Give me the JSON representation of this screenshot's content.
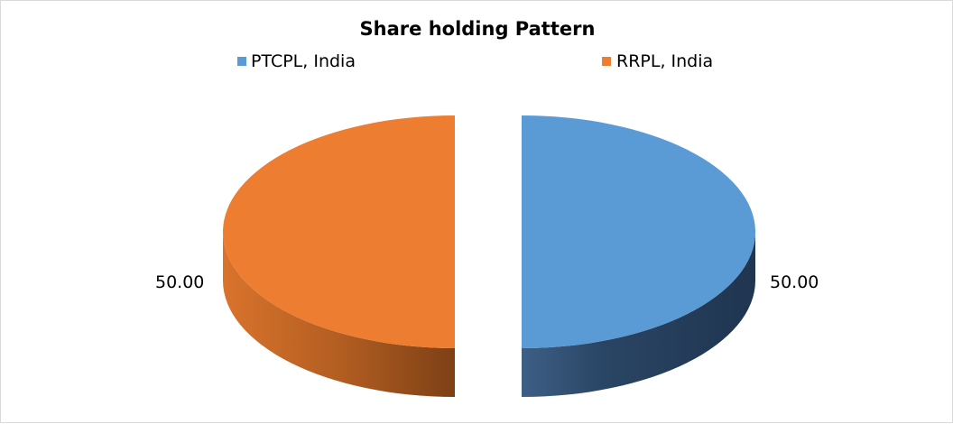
{
  "chart_data": {
    "type": "pie",
    "title": "Share holding  Pattern",
    "three_d": true,
    "exploded": true,
    "legend_position": "top",
    "categories": [
      "PTCPL, India",
      "RRPL, India"
    ],
    "values": [
      50.0,
      50.0
    ],
    "data_labels": [
      "50.00",
      "50.00"
    ],
    "colors": {
      "PTCPL, India": "#5b9bd5",
      "RRPL, India": "#ed7d31"
    }
  }
}
